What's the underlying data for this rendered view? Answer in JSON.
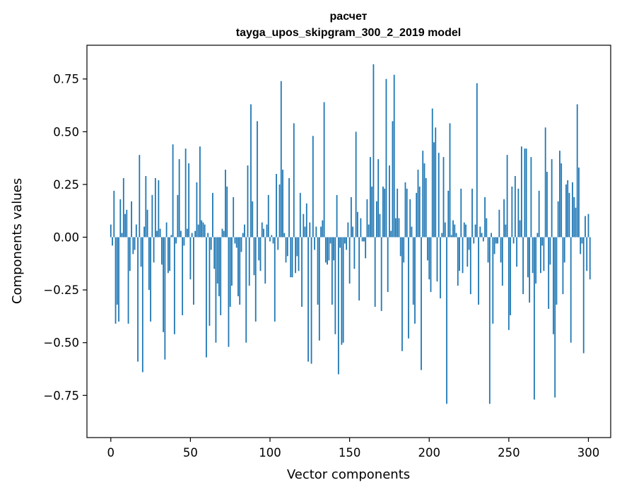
{
  "chart_data": {
    "type": "bar",
    "title": "расчет",
    "subtitle": "tayga_upos_skipgram_300_2_2019 model",
    "xlabel": "Vector components",
    "ylabel": "Components values",
    "xlim": [
      -15,
      314
    ],
    "ylim": [
      -0.95,
      0.91
    ],
    "xticks": [
      0,
      50,
      100,
      150,
      200,
      250,
      300
    ],
    "yticks": [
      -0.75,
      -0.5,
      -0.25,
      0.0,
      0.25,
      0.5,
      0.75
    ],
    "ytick_labels": [
      "−0.75",
      "−0.50",
      "−0.25",
      "0.00",
      "0.25",
      "0.50",
      "0.75"
    ],
    "grid": false,
    "bar_color": "#1f77b4",
    "values": [
      0.06,
      -0.04,
      0.22,
      -0.41,
      -0.32,
      -0.4,
      0.18,
      0.02,
      0.28,
      0.11,
      0.13,
      -0.41,
      -0.16,
      0.17,
      -0.08,
      -0.06,
      0.06,
      -0.59,
      0.39,
      -0.14,
      -0.64,
      0.05,
      0.29,
      0.13,
      -0.25,
      -0.4,
      0.2,
      -0.12,
      0.28,
      0.03,
      0.27,
      0.04,
      -0.13,
      -0.45,
      -0.58,
      0.07,
      -0.17,
      -0.16,
      0.01,
      0.44,
      -0.46,
      -0.03,
      0.2,
      0.37,
      0.03,
      -0.37,
      -0.04,
      0.42,
      0.04,
      0.35,
      -0.2,
      0.02,
      -0.32,
      0.03,
      0.26,
      0.06,
      0.43,
      0.08,
      0.07,
      0.06,
      -0.57,
      0.02,
      -0.42,
      -0.06,
      0.21,
      -0.15,
      -0.5,
      -0.22,
      -0.28,
      -0.37,
      0.04,
      0.03,
      0.32,
      0.24,
      -0.52,
      -0.33,
      -0.23,
      0.19,
      -0.03,
      -0.05,
      -0.28,
      -0.32,
      -0.07,
      0.02,
      0.06,
      -0.5,
      0.34,
      -0.23,
      0.63,
      0.17,
      -0.18,
      -0.4,
      0.55,
      -0.11,
      -0.16,
      0.07,
      0.04,
      -0.22,
      0.06,
      0.2,
      -0.02,
      0.01,
      -0.03,
      -0.4,
      0.3,
      -0.06,
      0.25,
      0.74,
      0.32,
      0.02,
      -0.12,
      -0.09,
      0.28,
      -0.19,
      -0.19,
      0.54,
      -0.17,
      -0.09,
      -0.16,
      0.21,
      -0.33,
      0.11,
      0.05,
      0.16,
      -0.59,
      0.07,
      -0.6,
      0.48,
      -0.06,
      0.05,
      -0.32,
      -0.49,
      0.05,
      0.08,
      0.64,
      -0.12,
      -0.13,
      -0.11,
      -0.03,
      -0.32,
      -0.11,
      -0.46,
      0.2,
      -0.65,
      -0.05,
      -0.51,
      -0.5,
      -0.03,
      -0.06,
      0.07,
      -0.22,
      0.19,
      0.05,
      -0.15,
      0.5,
      0.12,
      -0.3,
      0.09,
      -0.02,
      -0.02,
      -0.1,
      0.18,
      0.06,
      0.38,
      0.24,
      0.82,
      -0.33,
      0.17,
      0.37,
      0.11,
      -0.35,
      0.24,
      0.23,
      0.75,
      -0.26,
      0.34,
      0.03,
      0.55,
      0.77,
      0.09,
      0.23,
      0.09,
      -0.09,
      -0.54,
      -0.12,
      0.26,
      0.23,
      -0.48,
      0.18,
      0.05,
      -0.32,
      -0.41,
      0.21,
      0.32,
      0.24,
      -0.63,
      0.41,
      0.35,
      0.28,
      -0.11,
      -0.2,
      -0.26,
      0.61,
      0.45,
      0.52,
      -0.21,
      0.4,
      -0.29,
      0.02,
      0.38,
      0.07,
      -0.79,
      0.22,
      0.54,
      0.01,
      0.08,
      0.06,
      0.02,
      -0.23,
      -0.16,
      0.23,
      -0.17,
      0.07,
      0.06,
      -0.14,
      -0.06,
      -0.27,
      0.23,
      -0.03,
      0.06,
      0.73,
      -0.32,
      0.05,
      0.02,
      -0.02,
      0.19,
      0.09,
      -0.12,
      -0.79,
      0.02,
      -0.41,
      -0.08,
      -0.03,
      -0.03,
      0.13,
      -0.12,
      -0.23,
      0.18,
      0.06,
      0.39,
      -0.44,
      -0.37,
      0.24,
      -0.03,
      0.29,
      -0.14,
      0.23,
      0.08,
      0.43,
      -0.27,
      0.42,
      0.42,
      -0.19,
      -0.31,
      0.38,
      -0.17,
      -0.77,
      -0.22,
      0.02,
      0.22,
      -0.17,
      -0.04,
      -0.16,
      0.52,
      0.31,
      -0.34,
      -0.13,
      0.37,
      -0.46,
      -0.76,
      -0.32,
      0.17,
      0.41,
      0.35,
      -0.27,
      -0.12,
      0.25,
      0.27,
      0.21,
      -0.5,
      0.26,
      0.19,
      0.14,
      0.63,
      0.33,
      -0.08,
      -0.03,
      -0.55,
      0.1,
      -0.16,
      0.11,
      -0.2
    ]
  }
}
